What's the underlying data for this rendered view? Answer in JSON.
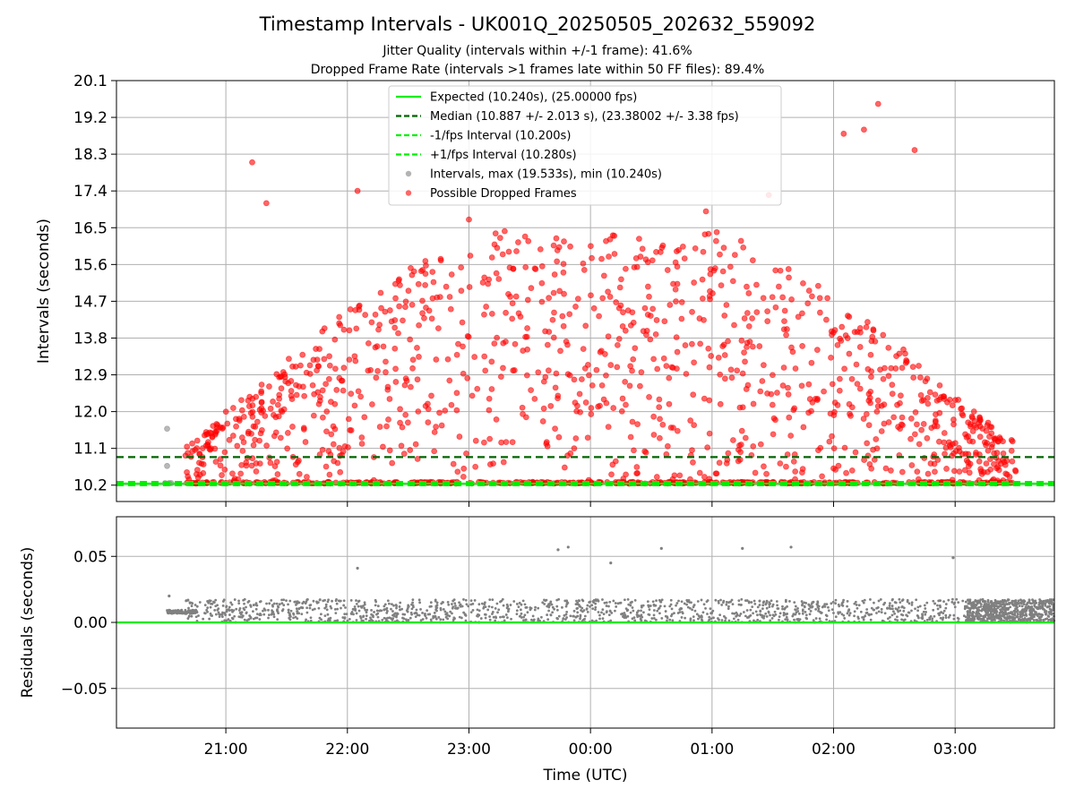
{
  "chart_data": [
    {
      "type": "scatter",
      "title": "Timestamp Intervals - UK001Q_20250505_202632_559092",
      "subtitle_lines": [
        "Jitter Quality (intervals within +/-1 frame): 41.6%",
        "Dropped Frame Rate (intervals >1 frames late within 50 FF files): 89.4%"
      ],
      "xlabel": "",
      "ylabel": "Intervals (seconds)",
      "x_ticks": [
        "21:00",
        "22:00",
        "23:00",
        "00:00",
        "01:00",
        "02:00",
        "03:00"
      ],
      "x_range": [
        "2025-05-05 20:06",
        "2025-05-06 03:49"
      ],
      "y_ticks": [
        "10.2",
        "11.1",
        "12.0",
        "12.9",
        "13.8",
        "14.7",
        "15.6",
        "16.5",
        "17.4",
        "18.3",
        "19.2",
        "20.1"
      ],
      "ylim": [
        9.8,
        20.1
      ],
      "grid": true,
      "legend_position": "upper-center",
      "series": [
        {
          "name": "Expected (10.240s), (25.00000 fps)",
          "kind": "hline",
          "y": 10.24,
          "color": "#00ee00",
          "style": "solid"
        },
        {
          "name": "Median (10.887 +/- 2.013 s), (23.38002 +/- 3.38 fps)",
          "kind": "hline",
          "y": 10.887,
          "color": "#006400",
          "style": "dashed"
        },
        {
          "name": "-1/fps Interval (10.200s)",
          "kind": "hline",
          "y": 10.2,
          "color": "#00ee00",
          "style": "dashed"
        },
        {
          "name": "+1/fps Interval (10.280s)",
          "kind": "hline",
          "y": 10.28,
          "color": "#00ee00",
          "style": "dashed"
        },
        {
          "name": "Intervals, max (19.533s), min (10.240s)",
          "kind": "scatter",
          "color": "#808080",
          "points": [
            [
              "20:31",
              11.58
            ],
            [
              "20:31",
              10.67
            ],
            [
              "20:30",
              10.25
            ],
            [
              "20:32",
              10.25
            ],
            [
              "20:33",
              10.25
            ]
          ]
        },
        {
          "name": "Possible Dropped Frames",
          "kind": "scatter",
          "color": "#ff0000",
          "time_range": [
            "20:40",
            "03:30"
          ],
          "y_range": [
            10.24,
            19.533
          ],
          "cluster_y": 10.24,
          "notable_points": [
            [
              "21:13",
              18.1
            ],
            [
              "21:20",
              17.1
            ],
            [
              "22:05",
              17.4
            ],
            [
              "23:00",
              16.7
            ],
            [
              "02:05",
              18.8
            ],
            [
              "02:15",
              18.9
            ],
            [
              "02:22",
              19.53
            ],
            [
              "02:40",
              18.4
            ],
            [
              "00:57",
              16.9
            ],
            [
              "01:28",
              17.3
            ]
          ]
        }
      ]
    },
    {
      "type": "scatter",
      "title": "",
      "xlabel": "Time (UTC)",
      "ylabel": "Residuals (seconds)",
      "x_ticks": [
        "21:00",
        "22:00",
        "23:00",
        "00:00",
        "01:00",
        "02:00",
        "03:00"
      ],
      "x_range": [
        "2025-05-05 20:06",
        "2025-05-06 03:49"
      ],
      "y_ticks": [
        "0.05",
        "0.00",
        "−0.05"
      ],
      "ylim": [
        -0.08,
        0.08
      ],
      "grid": true,
      "series": [
        {
          "kind": "hline",
          "y": 0.0,
          "color": "#00ee00",
          "style": "solid"
        },
        {
          "kind": "scatter",
          "color": "#808080",
          "y_range": [
            0.0,
            0.0575
          ],
          "notable_points": [
            [
              "20:32",
              0.02
            ],
            [
              "22:05",
              0.041
            ],
            [
              "23:44",
              0.055
            ],
            [
              "23:49",
              0.057
            ],
            [
              "00:10",
              0.045
            ],
            [
              "00:35",
              0.056
            ],
            [
              "01:15",
              0.056
            ],
            [
              "01:39",
              0.057
            ],
            [
              "02:59",
              0.049
            ]
          ],
          "dense_band": {
            "from": "20:31",
            "to": "20:46",
            "y": 0.008
          }
        }
      ]
    }
  ]
}
